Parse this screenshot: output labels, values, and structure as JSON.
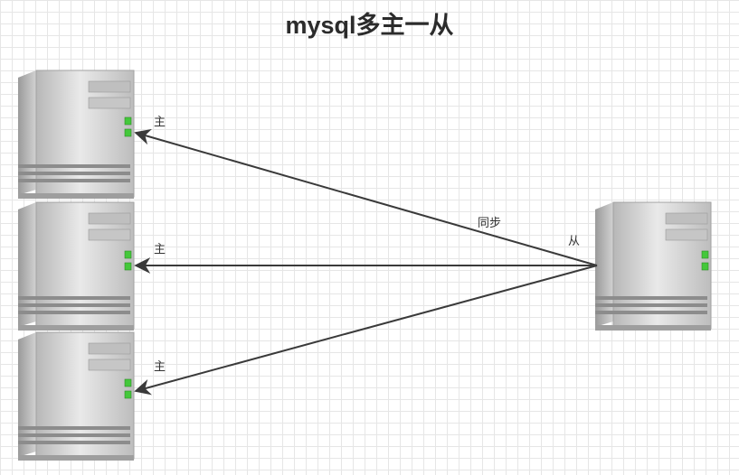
{
  "title": "mysql多主一从",
  "masters": [
    {
      "label": "主"
    },
    {
      "label": "主"
    },
    {
      "label": "主"
    }
  ],
  "slave": {
    "label": "从"
  },
  "edge_label": "同步",
  "colors": {
    "arrow": "#3a3a3a",
    "led": "#44c83b",
    "server_light": "#f4f4f4",
    "server_dark": "#a9a9a9",
    "grid": "#e6e6e6"
  }
}
